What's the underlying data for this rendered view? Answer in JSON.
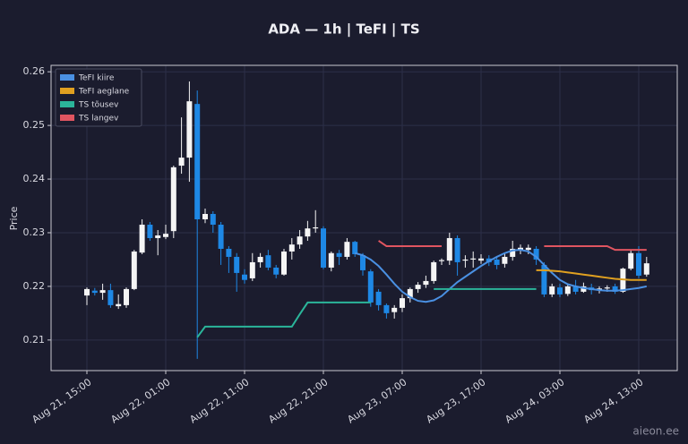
{
  "chart_data": {
    "type": "candlestick",
    "title": "ADA — 1h  |  TeFI  |  TS",
    "y_label": "Price",
    "watermark": "aieon.ee",
    "categories": [
      "Aug 21, 15:00",
      null,
      null,
      null,
      null,
      null,
      null,
      null,
      null,
      null,
      "Aug 22, 01:00",
      null,
      null,
      null,
      null,
      null,
      null,
      null,
      null,
      null,
      "Aug 22, 11:00",
      null,
      null,
      null,
      null,
      null,
      null,
      null,
      null,
      null,
      "Aug 22, 21:00",
      null,
      null,
      null,
      null,
      null,
      null,
      null,
      null,
      null,
      "Aug 23, 07:00",
      null,
      null,
      null,
      null,
      null,
      null,
      null,
      null,
      null,
      "Aug 23, 17:00",
      null,
      null,
      null,
      null,
      null,
      null,
      null,
      null,
      null,
      "Aug 24, 03:00",
      null,
      null,
      null,
      null,
      null,
      null,
      null,
      null,
      null,
      "Aug 24, 13:00",
      null
    ],
    "open": [
      0.2183,
      0.2192,
      0.2188,
      0.2193,
      0.2163,
      0.2165,
      0.2195,
      0.2263,
      0.2315,
      0.229,
      0.2292,
      0.2303,
      0.2425,
      0.244,
      0.254,
      0.2325,
      0.2335,
      0.2315,
      0.227,
      0.2255,
      0.2222,
      0.2215,
      0.2245,
      0.2258,
      0.2235,
      0.2222,
      0.2265,
      0.2278,
      0.2293,
      0.2308,
      0.2308,
      0.2235,
      0.2262,
      0.2255,
      0.2283,
      0.2258,
      0.2228,
      0.219,
      0.2165,
      0.2152,
      0.216,
      0.2178,
      0.2195,
      0.2203,
      0.221,
      0.2247,
      0.2248,
      0.229,
      0.2248,
      0.225,
      0.2248,
      0.2252,
      0.225,
      0.2242,
      0.2255,
      0.2268,
      0.2268,
      0.227,
      0.224,
      0.2185,
      0.2198,
      0.2186,
      0.22,
      0.219,
      0.2198,
      0.2193,
      0.2196,
      0.22,
      0.219,
      0.2233,
      0.2262,
      0.2222
    ],
    "high": [
      0.2198,
      0.2197,
      0.2205,
      0.2205,
      0.2185,
      0.2198,
      0.2268,
      0.2325,
      0.232,
      0.2305,
      0.2315,
      0.2425,
      0.2515,
      0.2582,
      0.2565,
      0.2345,
      0.234,
      0.232,
      0.2275,
      0.2262,
      0.2232,
      0.2262,
      0.2262,
      0.2268,
      0.224,
      0.227,
      0.229,
      0.2305,
      0.2322,
      0.2342,
      0.2312,
      0.2265,
      0.2268,
      0.229,
      0.2285,
      0.2262,
      0.2232,
      0.2195,
      0.2168,
      0.2165,
      0.2185,
      0.2198,
      0.2208,
      0.222,
      0.2248,
      0.2252,
      0.23,
      0.2295,
      0.2258,
      0.2265,
      0.226,
      0.2258,
      0.2256,
      0.2262,
      0.2285,
      0.2278,
      0.2278,
      0.2275,
      0.2245,
      0.2205,
      0.2205,
      0.2205,
      0.2212,
      0.2207,
      0.2205,
      0.22,
      0.2202,
      0.2205,
      0.2235,
      0.2268,
      0.2275,
      0.2255
    ],
    "low": [
      0.2165,
      0.2183,
      0.2175,
      0.216,
      0.2158,
      0.216,
      0.2193,
      0.226,
      0.2285,
      0.2258,
      0.2288,
      0.229,
      0.241,
      0.2395,
      0.2065,
      0.2318,
      0.23,
      0.224,
      0.2225,
      0.219,
      0.2205,
      0.221,
      0.2235,
      0.223,
      0.2215,
      0.222,
      0.225,
      0.227,
      0.2285,
      0.23,
      0.2232,
      0.2228,
      0.224,
      0.225,
      0.2255,
      0.222,
      0.2162,
      0.2155,
      0.214,
      0.214,
      0.2152,
      0.217,
      0.2188,
      0.2197,
      0.2205,
      0.224,
      0.224,
      0.222,
      0.2235,
      0.2235,
      0.2242,
      0.2238,
      0.2232,
      0.2235,
      0.2248,
      0.226,
      0.226,
      0.224,
      0.218,
      0.218,
      0.218,
      0.2182,
      0.2185,
      0.2188,
      0.2185,
      0.2187,
      0.219,
      0.2186,
      0.2188,
      0.223,
      0.2215,
      0.2218
    ],
    "close": [
      0.2195,
      0.2188,
      0.2193,
      0.2165,
      0.2167,
      0.2195,
      0.2265,
      0.2315,
      0.229,
      0.2295,
      0.2298,
      0.2422,
      0.244,
      0.2545,
      0.2325,
      0.2335,
      0.2315,
      0.227,
      0.2255,
      0.2225,
      0.2212,
      0.2245,
      0.2255,
      0.2235,
      0.2222,
      0.2265,
      0.2278,
      0.2293,
      0.2308,
      0.231,
      0.2235,
      0.2262,
      0.2255,
      0.2283,
      0.226,
      0.223,
      0.217,
      0.2165,
      0.215,
      0.216,
      0.2178,
      0.2195,
      0.2203,
      0.221,
      0.2245,
      0.2249,
      0.229,
      0.2245,
      0.225,
      0.2252,
      0.2252,
      0.2245,
      0.224,
      0.2255,
      0.227,
      0.2272,
      0.2272,
      0.225,
      0.2185,
      0.22,
      0.2185,
      0.22,
      0.219,
      0.22,
      0.2193,
      0.2196,
      0.2198,
      0.219,
      0.2233,
      0.2262,
      0.222,
      0.2243
    ],
    "up_color": "#f5f5f5",
    "down_color": "#1e88e5",
    "series": [
      {
        "name": "TeFI kiire",
        "color": "#4a90e2",
        "values": [
          null,
          null,
          null,
          null,
          null,
          null,
          null,
          null,
          null,
          null,
          null,
          null,
          null,
          null,
          null,
          null,
          null,
          null,
          null,
          null,
          null,
          null,
          null,
          null,
          null,
          null,
          null,
          null,
          null,
          null,
          null,
          null,
          null,
          null,
          0.2262,
          0.2258,
          0.225,
          0.2238,
          0.2222,
          0.2205,
          0.219,
          0.218,
          0.2173,
          0.2171,
          0.2174,
          0.2182,
          0.2195,
          0.2208,
          0.2218,
          0.2228,
          0.2238,
          0.2247,
          0.2255,
          0.2262,
          0.2267,
          0.2268,
          0.2265,
          0.2255,
          0.224,
          0.2225,
          0.2212,
          0.2204,
          0.22,
          0.2197,
          0.2195,
          0.2193,
          0.2192,
          0.2192,
          0.2193,
          0.2195,
          0.2197,
          0.22
        ]
      },
      {
        "name": "TeFI aeglane",
        "color": "#e0a020",
        "values": [
          null,
          null,
          null,
          null,
          null,
          null,
          null,
          null,
          null,
          null,
          null,
          null,
          null,
          null,
          null,
          null,
          null,
          null,
          null,
          null,
          null,
          null,
          null,
          null,
          null,
          null,
          null,
          null,
          null,
          null,
          null,
          null,
          null,
          null,
          null,
          null,
          null,
          null,
          null,
          null,
          null,
          null,
          null,
          null,
          null,
          null,
          null,
          null,
          null,
          null,
          null,
          null,
          null,
          null,
          null,
          null,
          null,
          0.223,
          0.223,
          0.2229,
          0.2228,
          0.2226,
          0.2224,
          0.2222,
          0.222,
          0.2218,
          0.2216,
          0.2214,
          0.2213,
          0.2212,
          0.2212,
          0.2212
        ]
      },
      {
        "name": "TS tõusev",
        "color": "#2bb59a",
        "values": [
          null,
          null,
          null,
          null,
          null,
          null,
          null,
          null,
          null,
          null,
          null,
          null,
          null,
          null,
          0.2105,
          0.2125,
          0.2125,
          0.2125,
          0.2125,
          0.2125,
          0.2125,
          0.2125,
          0.2125,
          0.2125,
          0.2125,
          0.2125,
          0.2125,
          0.2148,
          0.217,
          0.217,
          0.217,
          0.217,
          0.217,
          0.217,
          0.217,
          0.217,
          0.217,
          null,
          null,
          null,
          null,
          null,
          null,
          null,
          0.2195,
          0.2195,
          0.2195,
          0.2195,
          0.2195,
          0.2195,
          0.2195,
          0.2195,
          0.2195,
          0.2195,
          0.2195,
          0.2195,
          0.2195,
          0.2195,
          null,
          null,
          null,
          null,
          null,
          null,
          null,
          null,
          null,
          null,
          null,
          null,
          null,
          null
        ]
      },
      {
        "name": "TS langev",
        "color": "#e05560",
        "values": [
          null,
          null,
          null,
          null,
          null,
          null,
          null,
          null,
          null,
          null,
          null,
          null,
          null,
          null,
          null,
          null,
          null,
          null,
          null,
          null,
          null,
          null,
          null,
          null,
          null,
          null,
          null,
          null,
          null,
          null,
          null,
          null,
          null,
          null,
          null,
          null,
          null,
          0.2285,
          0.2275,
          0.2275,
          0.2275,
          0.2275,
          0.2275,
          0.2275,
          0.2275,
          0.2275,
          null,
          null,
          null,
          null,
          null,
          null,
          null,
          null,
          null,
          null,
          null,
          null,
          0.2275,
          0.2275,
          0.2275,
          0.2275,
          0.2275,
          0.2275,
          0.2275,
          0.2275,
          0.2275,
          0.2268,
          0.2268,
          0.2268,
          0.2268,
          0.2268
        ]
      }
    ],
    "ylim": [
      0.2043,
      0.2612
    ],
    "yticks": [
      0.21,
      0.22,
      0.23,
      0.24,
      0.25,
      0.26
    ],
    "grid": true,
    "legend": "upper left"
  }
}
